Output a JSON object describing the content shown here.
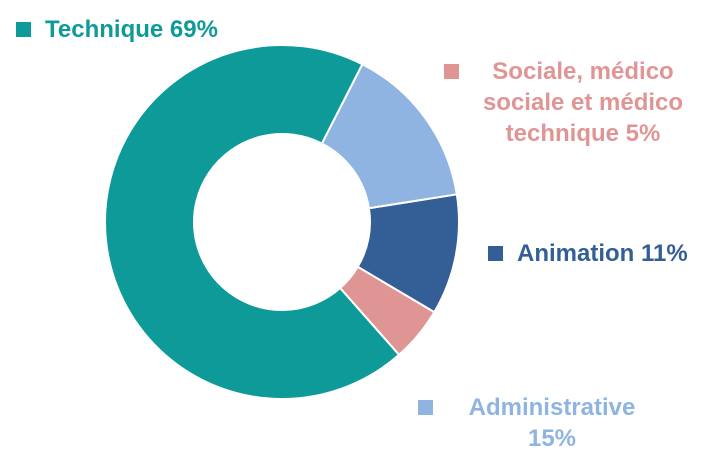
{
  "chart_data": {
    "type": "pie",
    "variant": "donut",
    "title": "",
    "slices": [
      {
        "label": "Technique",
        "value": 69,
        "value_text": "69%",
        "color": "#0f9a9a",
        "legend_text": "Technique 69%"
      },
      {
        "label": "Sociale, médico sociale et médico technique",
        "value": 5,
        "value_text": "5%",
        "color": "#e09595",
        "legend_text": "Sociale, médico\nsociale et médico\ntechnique 5%"
      },
      {
        "label": "Animation",
        "value": 11,
        "value_text": "11%",
        "color": "#345f96",
        "legend_text": "Animation 11%"
      },
      {
        "label": "Administrative",
        "value": 15,
        "value_text": "15%",
        "color": "#8fb4e2",
        "legend_text": "Administrative\n15%"
      }
    ],
    "start_angle_deg": 63,
    "legend_placement": "around the ring"
  }
}
